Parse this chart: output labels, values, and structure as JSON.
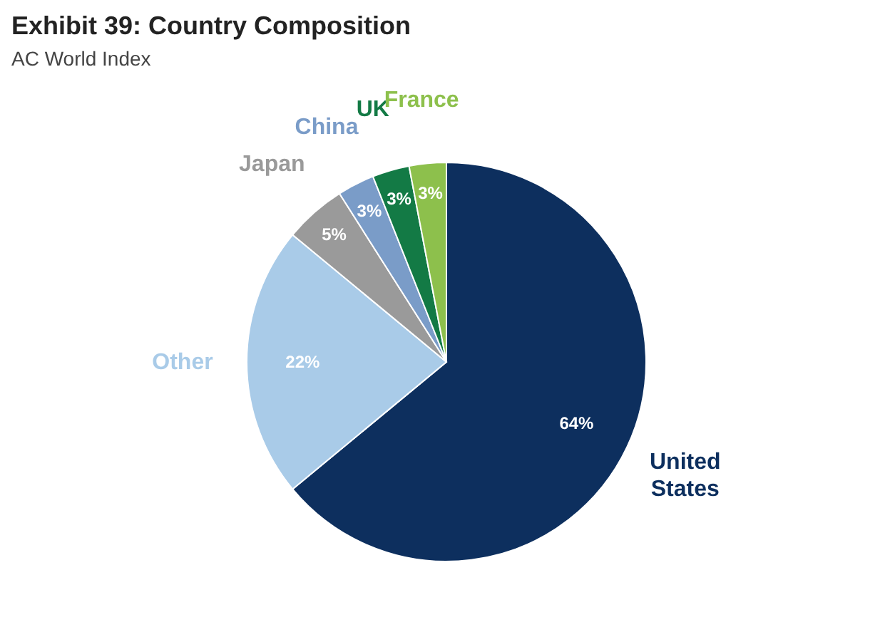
{
  "chart_data": {
    "type": "pie",
    "title": "Exhibit 39: Country Composition",
    "subtitle": "AC World Index",
    "categories": [
      "United States",
      "Other",
      "Japan",
      "China",
      "UK",
      "France"
    ],
    "values": [
      64,
      22,
      5,
      3,
      3,
      3
    ],
    "value_labels": [
      "64%",
      "22%",
      "5%",
      "3%",
      "3%",
      "3%"
    ],
    "colors": [
      "#0d2f5e",
      "#a9cbe8",
      "#9a9a9a",
      "#7a9cc8",
      "#137a45",
      "#8dc04c"
    ],
    "legend": false
  }
}
